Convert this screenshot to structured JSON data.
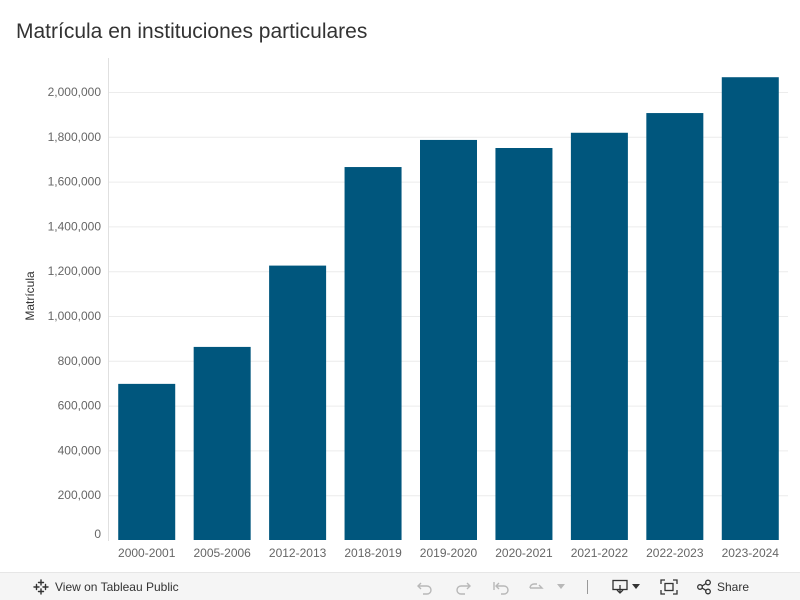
{
  "title": "Matrícula en instituciones particulares",
  "toolbar": {
    "view_label": "View on Tableau Public",
    "share_label": "Share"
  },
  "colors": {
    "bar": "#00567d",
    "grid": "#ececec"
  },
  "chart_data": {
    "type": "bar",
    "categories": [
      "2000-2001",
      "2005-2006",
      "2012-2013",
      "2018-2019",
      "2019-2020",
      "2020-2021",
      "2021-2022",
      "2022-2023",
      "2023-2024"
    ],
    "values": [
      697000,
      862000,
      1225000,
      1665000,
      1786000,
      1750000,
      1818000,
      1906000,
      2066000
    ],
    "ylabel": "Matrícula",
    "xlabel": "",
    "ylim": [
      0,
      2100000
    ],
    "yticks": [
      0,
      200000,
      400000,
      600000,
      800000,
      1000000,
      1200000,
      1400000,
      1600000,
      1800000,
      2000000
    ],
    "grid": true
  }
}
